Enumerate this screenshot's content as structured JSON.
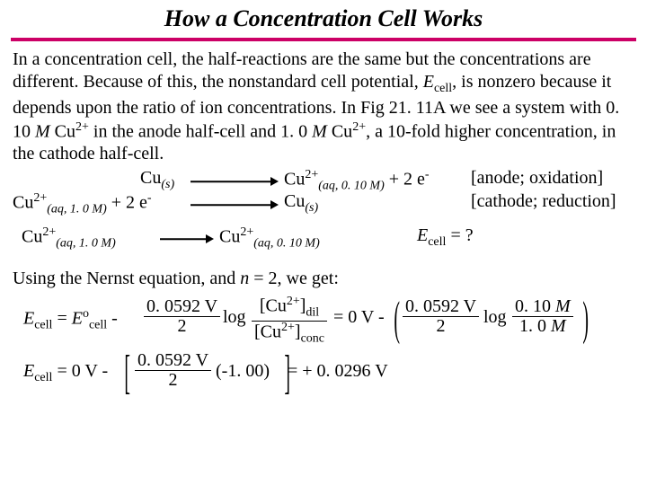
{
  "title": "How a Concentration Cell Works",
  "para_html": "In a concentration cell, the half-reactions are the same but the concentrations are different.  Because of this, the nonstandard cell potential, <span class='ital'>E</span><span class='sub'>cell</span>,  is nonzero because it depends upon the ratio of ion concentrations. In Fig 21. 11A we see a system with 0. 10 <span class='ital'>M</span> Cu<span class='sup'>2+</span> in the anode half-cell and 1. 0 <span class='ital'>M</span> Cu<span class='sup'>2+</span>, a 10-fold higher concentration, in the cathode half-cell.",
  "rxn1_left_html": "Cu<span class='subit'>(s)</span>",
  "rxn1_right_html": "Cu<span class='sup'>2+</span><span class='subit'>(aq, 0. 10 <span class='ital'>M</span>)</span> + 2 e<span class='sup'>-</span>",
  "rxn1_label": "[anode; oxidation]",
  "rxn2_left_html": "Cu<span class='sup'>2+</span><span class='subit'>(aq, 1. 0 <span class='ital'>M</span>)</span> + 2 e<span class='sup'>-</span>",
  "rxn2_right_html": "Cu<span class='subit'>(s)</span>",
  "rxn2_label": "[cathode; reduction]",
  "eq_left_html": "Cu<span class='sup'>2+</span><span class='subit'>(aq, 1. 0 <span class='ital'>M</span>)</span>",
  "eq_right_html": "Cu<span class='sup'>2+</span><span class='subit'>(aq, 0. 10 <span class='ital'>M</span>)</span>",
  "eq_q_html": "<span class='ital'>E</span><span class='sub'>cell</span> = ?",
  "nernst_intro_html": "Using the Nernst equation, and <span class='ital'>n</span> = 2, we get:",
  "n1_lhs_html": "<span class='ital'>E</span><span class='sub'>cell</span> = <span class='ital'>E</span><span class='sup'>o</span><span class='sub'>cell</span> -",
  "n1_frac1_num": "0. 0592 V",
  "n1_frac1_den": "2",
  "n1_log": "log",
  "n1_frac2_num_html": "[Cu<span class='sup'>2+</span>]<span class='sub'>dil</span>",
  "n1_frac2_den_html": "[Cu<span class='sup'>2+</span>]<span class='sub'>conc</span>",
  "n1_mid_html": "= 0 V -",
  "n1_frac3_num": "0. 0592 V",
  "n1_frac3_den": "2",
  "n1_frac4_num_html": "0. 10 <span class='ital'>M</span>",
  "n1_frac4_den_html": "1. 0 <span class='ital'>M</span>",
  "n2_lhs_html": "<span class='ital'>E</span><span class='sub'>cell</span> = 0 V -",
  "n2_frac_num": "0. 0592 V",
  "n2_frac_den": "2",
  "n2_factor": "(-1. 00)",
  "n2_result": "= + 0. 0296 V"
}
